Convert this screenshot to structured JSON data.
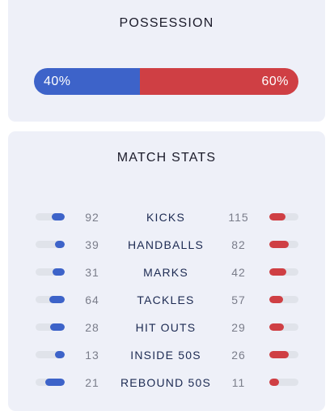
{
  "possession": {
    "title": "POSSESSION",
    "home_label": "40%",
    "away_label": "60%",
    "home_fraction": 0.4,
    "away_fraction": 0.6,
    "home_color": "#3d63c9",
    "away_color": "#cf3f44"
  },
  "match_stats": {
    "title": "MATCH STATS",
    "rows": [
      {
        "label": "KICKS",
        "home": "92",
        "away": "115",
        "home_fill": 0.44,
        "away_fill": 0.56
      },
      {
        "label": "HANDBALLS",
        "home": "39",
        "away": "82",
        "home_fill": 0.32,
        "away_fill": 0.68
      },
      {
        "label": "MARKS",
        "home": "31",
        "away": "42",
        "home_fill": 0.42,
        "away_fill": 0.58
      },
      {
        "label": "TACKLES",
        "home": "64",
        "away": "57",
        "home_fill": 0.53,
        "away_fill": 0.47
      },
      {
        "label": "HIT OUTS",
        "home": "28",
        "away": "29",
        "home_fill": 0.49,
        "away_fill": 0.51
      },
      {
        "label": "INSIDE 50S",
        "home": "13",
        "away": "26",
        "home_fill": 0.33,
        "away_fill": 0.67
      },
      {
        "label": "REBOUND 50S",
        "home": "21",
        "away": "11",
        "home_fill": 0.66,
        "away_fill": 0.34
      }
    ]
  }
}
